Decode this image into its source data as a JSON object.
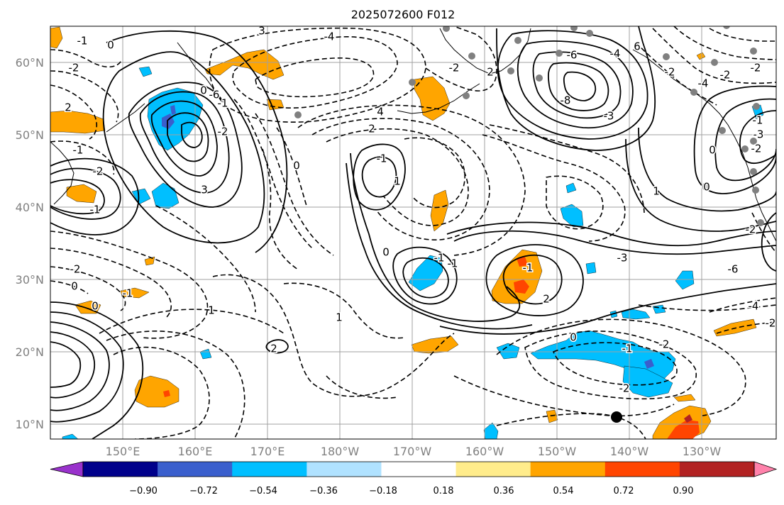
{
  "title": "2025072600 F012",
  "map": {
    "lat_labels": [
      "60°N",
      "50°N",
      "40°N",
      "30°N",
      "20°N",
      "10°N"
    ],
    "lon_labels": [
      "150°E",
      "160°E",
      "170°E",
      "180°W",
      "170°W",
      "160°W",
      "150°W",
      "140°W",
      "130°W"
    ],
    "contour_labels": [
      "3",
      "-1",
      "0",
      "-2",
      "2",
      "-6",
      "-1",
      "0",
      "-2",
      "3",
      "4",
      "2",
      "-4",
      "-2",
      "2",
      "-6",
      "-4",
      "6",
      "-8",
      "-3",
      "-2",
      "-4",
      "-2",
      "-2",
      "-3",
      "-2",
      "1",
      "0",
      "-1",
      "-2",
      "-1",
      "0",
      "-2",
      "0",
      "-1",
      "0",
      "1",
      "2",
      "1",
      "-1",
      "1",
      "0",
      "-1",
      "-1",
      "-1",
      "2",
      "-3",
      "-6",
      "-4",
      "-2",
      "-1",
      "-2",
      "0",
      "-2",
      "-2",
      "0",
      "-1",
      "0"
    ],
    "colors": {
      "contour": "#000000",
      "grid": "#a0a0a0",
      "coast": "#000000"
    }
  },
  "colorbar": {
    "colors": [
      "#9932cc",
      "#00008b",
      "#3a5fcd",
      "#00bfff",
      "#b0e2ff",
      "#ffffff",
      "#ffec8b",
      "#ffa500",
      "#ff4500",
      "#b22222",
      "#ff82ab"
    ],
    "tick_labels": [
      "−0.90",
      "−0.72",
      "−0.54",
      "−0.36",
      "−0.18",
      "0.18",
      "0.36",
      "0.54",
      "0.72",
      "0.90"
    ]
  }
}
